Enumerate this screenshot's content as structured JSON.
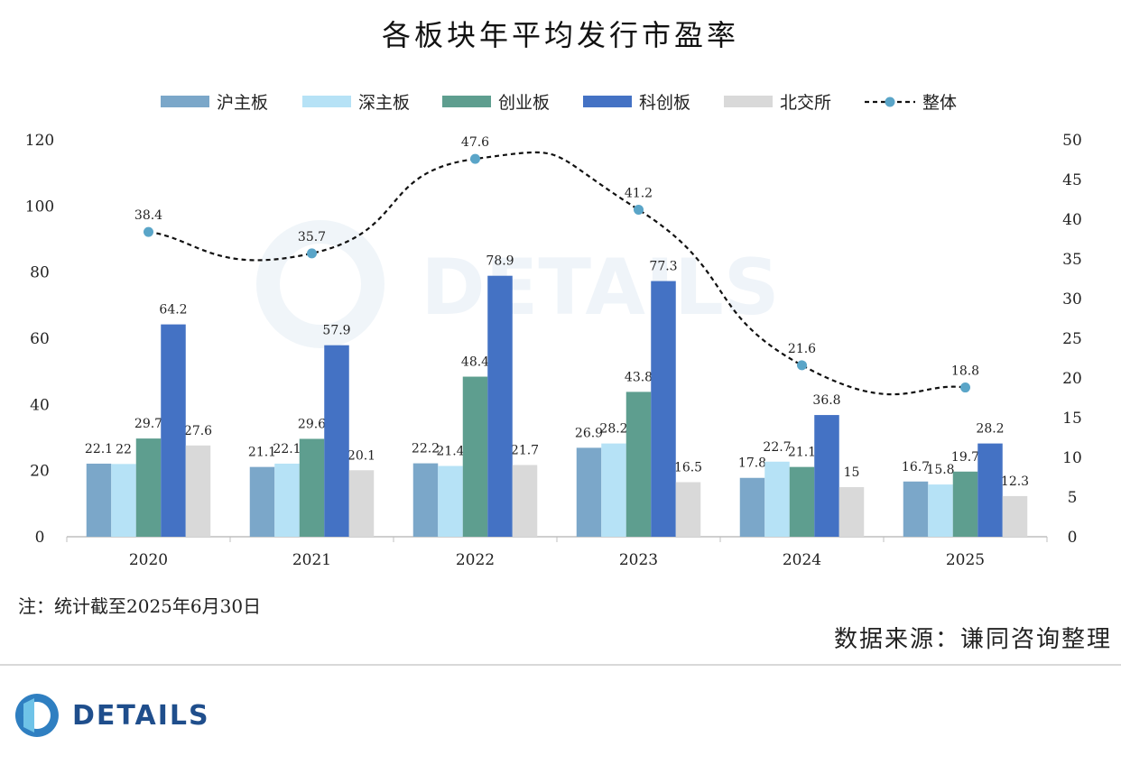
{
  "title": "各板块年平均发行市盈率",
  "note": "注：统计截至2025年6月30日",
  "source": "数据来源：谦同咨询整理",
  "watermark": "DETAILS",
  "logo_text": "DETAILS",
  "chart_data": {
    "type": "bar",
    "categories": [
      "2020",
      "2021",
      "2022",
      "2023",
      "2024",
      "2025"
    ],
    "series": [
      {
        "name": "沪主板",
        "color": "#7ba7c9",
        "values": [
          22.1,
          21.1,
          22.2,
          26.9,
          17.8,
          16.7
        ],
        "labels": [
          "22.1",
          "21.1",
          "22.2",
          "26.9",
          "17.8",
          "16.7"
        ]
      },
      {
        "name": "深主板",
        "color": "#b6e2f6",
        "values": [
          22,
          22.1,
          21.4,
          28.2,
          22.7,
          15.8
        ],
        "labels": [
          "22",
          "22.1",
          "21.4",
          "28.2",
          "22.7",
          "15.8"
        ]
      },
      {
        "name": "创业板",
        "color": "#5e9e8f",
        "values": [
          29.7,
          29.6,
          48.4,
          43.8,
          21.1,
          19.7
        ],
        "labels": [
          "29.7",
          "29.6",
          "48.4",
          "43.8",
          "21.1",
          "19.7"
        ]
      },
      {
        "name": "科创板",
        "color": "#4472c4",
        "values": [
          64.2,
          57.9,
          78.9,
          77.3,
          36.8,
          28.2
        ],
        "labels": [
          "64.2",
          "57.9",
          "78.9",
          "77.3",
          "36.8",
          "28.2"
        ]
      },
      {
        "name": "北交所",
        "color": "#d9d9d9",
        "values": [
          27.6,
          20.1,
          21.7,
          16.5,
          15,
          12.3
        ],
        "labels": [
          "27.6",
          "20.1",
          "21.7",
          "16.5",
          "15",
          "12.3"
        ]
      }
    ],
    "line_series": {
      "name": "整体",
      "color": "#111111",
      "marker_color": "#5aa5c8",
      "axis": "right",
      "values": [
        38.4,
        35.7,
        47.6,
        41.2,
        21.6,
        18.8
      ],
      "labels": [
        "38.4",
        "35.7",
        "47.6",
        "41.2",
        "21.6",
        "18.8"
      ]
    },
    "y_left": {
      "min": 0,
      "max": 120,
      "ticks": [
        "0",
        "20",
        "40",
        "60",
        "80",
        "100",
        "120"
      ]
    },
    "y_right": {
      "min": 0,
      "max": 50,
      "ticks": [
        "0",
        "5",
        "10",
        "15",
        "20",
        "25",
        "30",
        "35",
        "40",
        "45",
        "50"
      ]
    },
    "legend_position": "top",
    "grid": false
  }
}
